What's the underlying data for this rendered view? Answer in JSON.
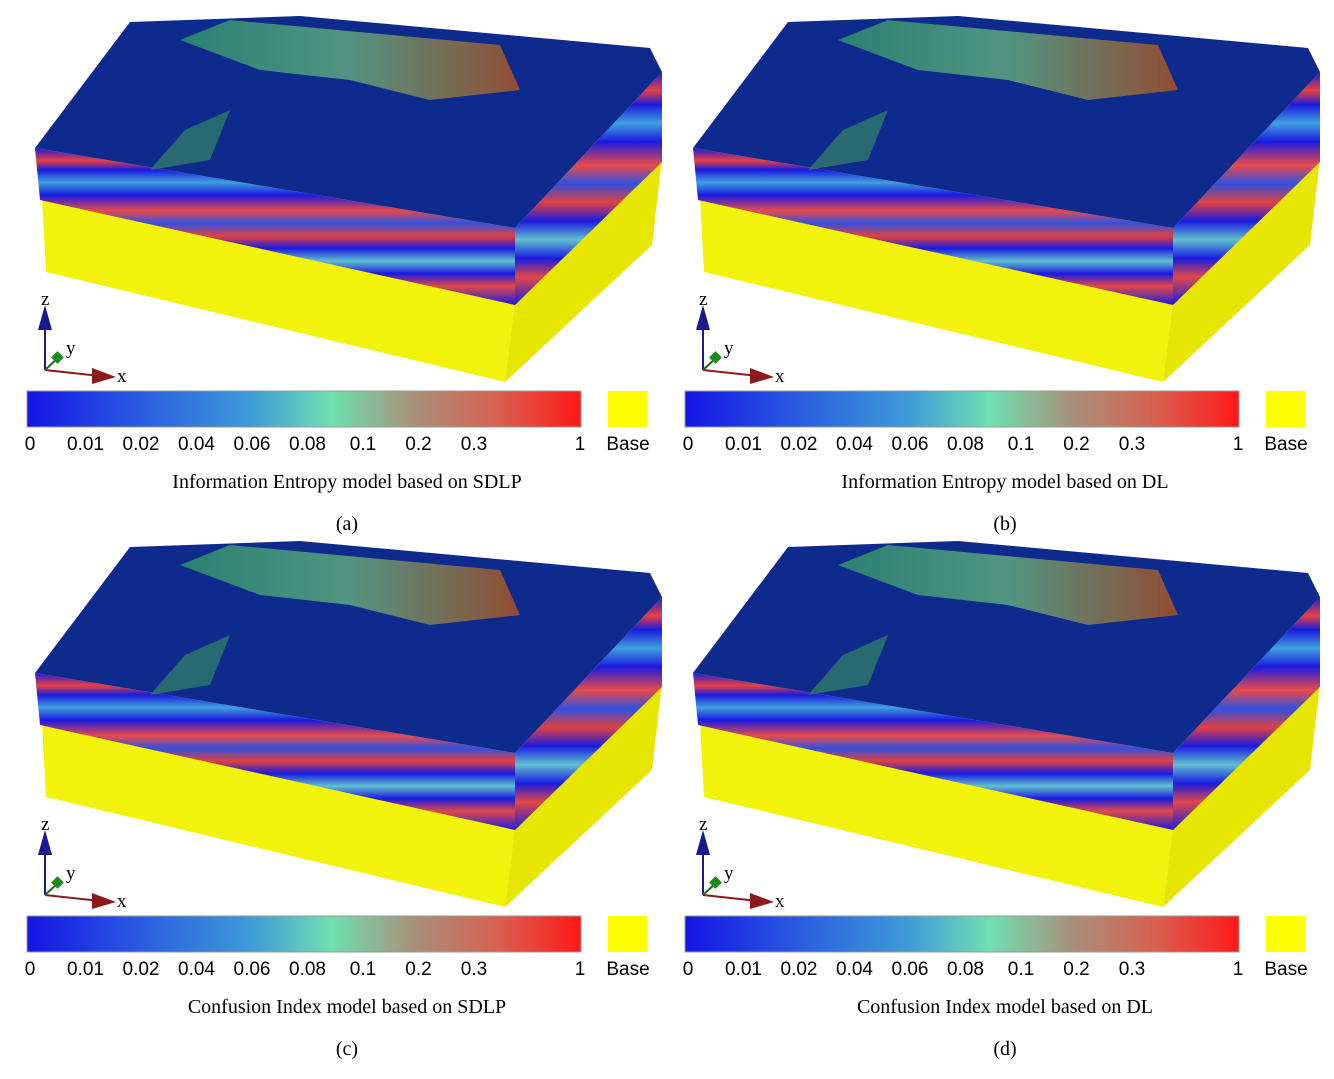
{
  "panels": [
    {
      "label": "(a)",
      "caption": "Information Entropy model based on SDLP",
      "axes": {
        "z": "z",
        "y": "y",
        "x": "x"
      },
      "legend": {
        "ticks": [
          "0",
          "0.01",
          "0.02",
          "0.04",
          "0.06",
          "0.08",
          "0.1",
          "0.2",
          "0.3",
          "1"
        ],
        "base": "Base"
      }
    },
    {
      "label": "(b)",
      "caption": "Information Entropy model based on DL",
      "axes": {
        "z": "z",
        "y": "y",
        "x": "x"
      },
      "legend": {
        "ticks": [
          "0",
          "0.01",
          "0.02",
          "0.04",
          "0.06",
          "0.08",
          "0.1",
          "0.2",
          "0.3",
          "1"
        ],
        "base": "Base"
      }
    },
    {
      "label": "(c)",
      "caption": "Confusion Index model based on SDLP",
      "axes": {
        "z": "z",
        "y": "y",
        "x": "x"
      },
      "legend": {
        "ticks": [
          "0",
          "0.01",
          "0.02",
          "0.04",
          "0.06",
          "0.08",
          "0.1",
          "0.2",
          "0.3",
          "1"
        ],
        "base": "Base"
      }
    },
    {
      "label": "(d)",
      "caption": "Confusion Index model based on DL",
      "axes": {
        "z": "z",
        "y": "y",
        "x": "x"
      },
      "legend": {
        "ticks": [
          "0",
          "0.01",
          "0.02",
          "0.04",
          "0.06",
          "0.08",
          "0.1",
          "0.2",
          "0.3",
          "1"
        ],
        "base": "Base"
      }
    }
  ]
}
